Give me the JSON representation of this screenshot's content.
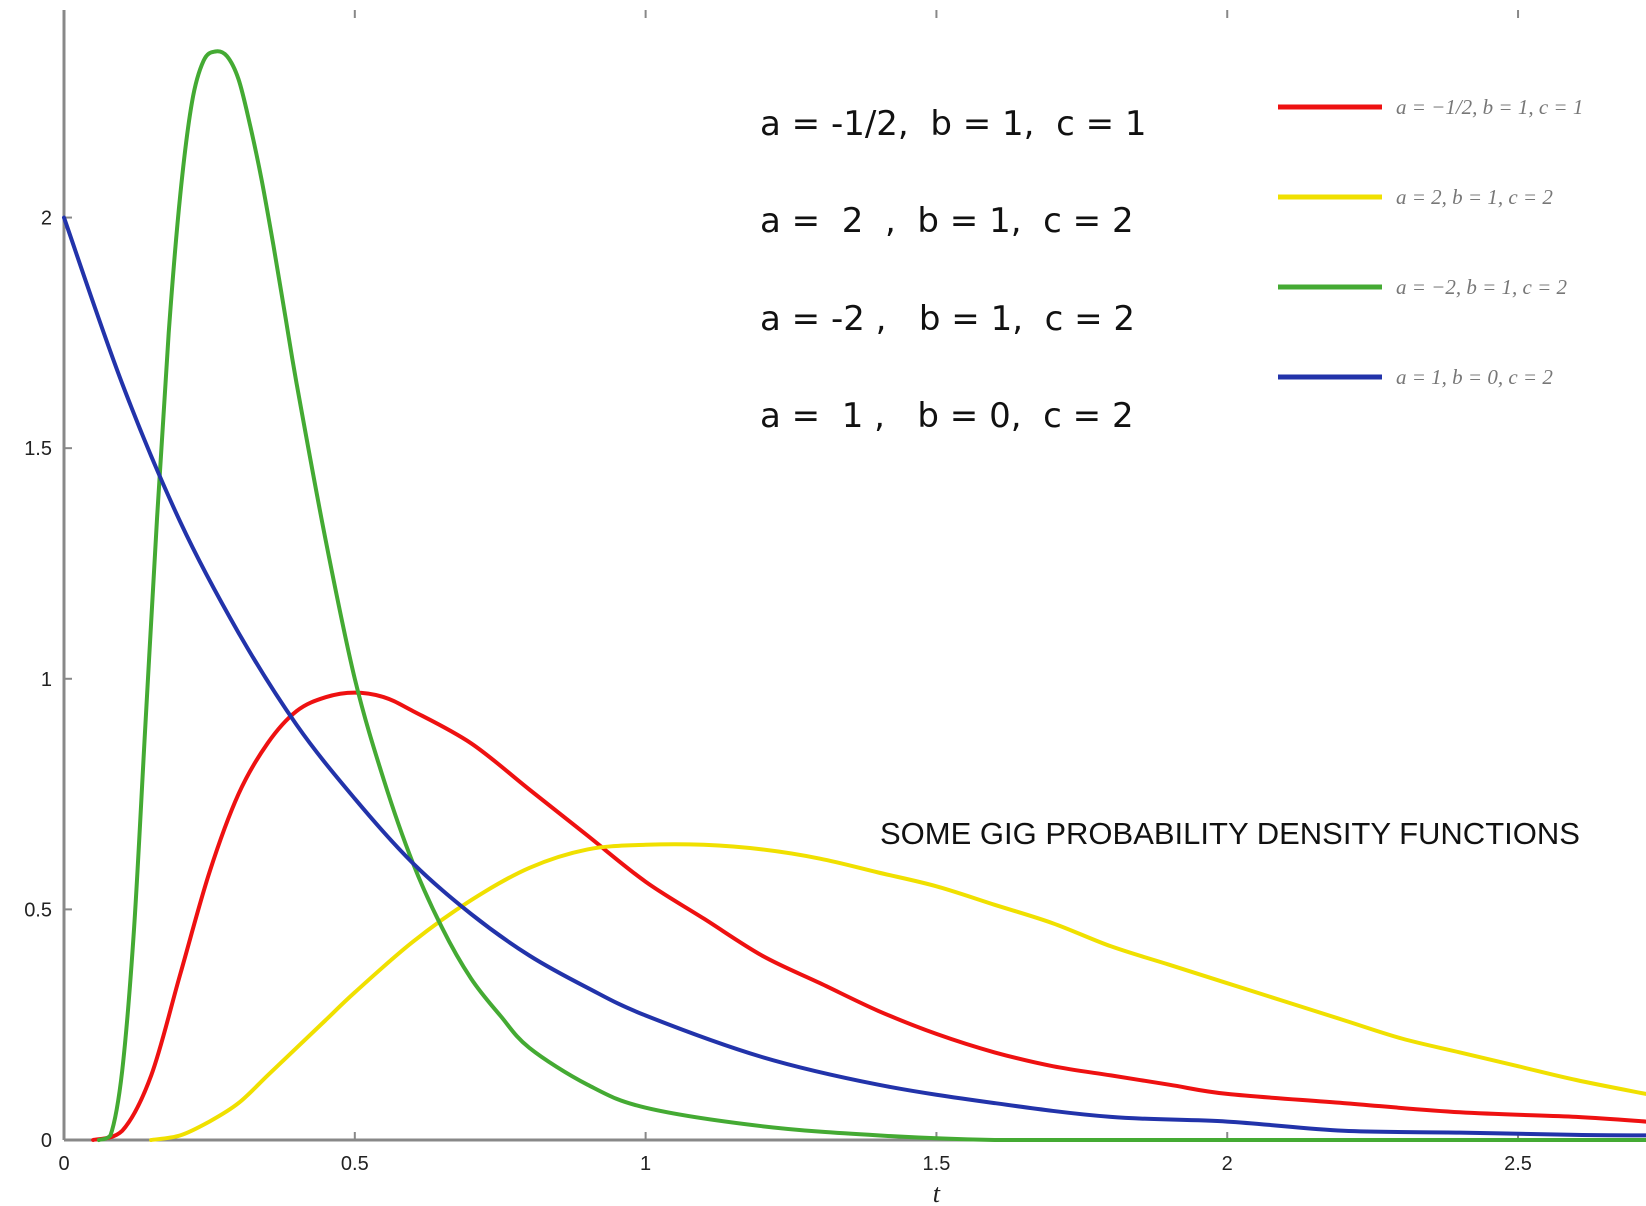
{
  "chart_data": {
    "type": "line",
    "title": "SOME GIG PROBABILITY DENSITY FUNCTIONS",
    "xlabel": "t",
    "ylabel": "",
    "xlim": [
      0,
      2.72
    ],
    "ylim": [
      0,
      2.45
    ],
    "xticks": [
      0,
      0.5,
      1,
      1.5,
      2,
      2.5
    ],
    "xtick_labels": [
      "0",
      "0.5",
      "1",
      "1.5",
      "2",
      "2.5"
    ],
    "yticks": [
      0,
      0.5,
      1,
      1.5,
      2
    ],
    "ytick_labels": [
      "0",
      "0.5",
      "1",
      "1.5",
      "2"
    ],
    "grid": false,
    "legend_position": "top-right",
    "annotations": [
      "a = -1/2,  b = 1,  c = 1",
      "a =  2  ,  b = 1,  c = 2",
      "a = -2 ,   b = 1,  c = 2",
      "a =  1 ,   b = 0,  c = 2"
    ],
    "series": [
      {
        "name": "a = −1/2, b = 1, c = 1",
        "color": "#ee1111",
        "x": [
          0.05,
          0.1,
          0.15,
          0.2,
          0.25,
          0.3,
          0.35,
          0.4,
          0.45,
          0.5,
          0.55,
          0.6,
          0.7,
          0.8,
          0.9,
          1.0,
          1.1,
          1.2,
          1.3,
          1.4,
          1.5,
          1.6,
          1.7,
          1.8,
          1.9,
          2.0,
          2.2,
          2.4,
          2.6,
          2.72
        ],
        "values": [
          0.0,
          0.02,
          0.14,
          0.36,
          0.58,
          0.75,
          0.86,
          0.93,
          0.96,
          0.97,
          0.96,
          0.93,
          0.86,
          0.76,
          0.66,
          0.56,
          0.48,
          0.4,
          0.34,
          0.28,
          0.23,
          0.19,
          0.16,
          0.14,
          0.12,
          0.1,
          0.08,
          0.06,
          0.05,
          0.04
        ]
      },
      {
        "name": "a = 2, b = 1, c = 2",
        "color": "#f0e000",
        "x": [
          0.15,
          0.2,
          0.25,
          0.3,
          0.35,
          0.4,
          0.45,
          0.5,
          0.6,
          0.7,
          0.8,
          0.9,
          1.0,
          1.1,
          1.2,
          1.3,
          1.4,
          1.5,
          1.6,
          1.7,
          1.8,
          1.9,
          2.0,
          2.1,
          2.2,
          2.3,
          2.4,
          2.5,
          2.6,
          2.72
        ],
        "values": [
          0.0,
          0.01,
          0.04,
          0.08,
          0.14,
          0.2,
          0.26,
          0.32,
          0.43,
          0.52,
          0.59,
          0.63,
          0.64,
          0.64,
          0.63,
          0.61,
          0.58,
          0.55,
          0.51,
          0.47,
          0.42,
          0.38,
          0.34,
          0.3,
          0.26,
          0.22,
          0.19,
          0.16,
          0.13,
          0.1
        ]
      },
      {
        "name": "a = −2, b = 1, c = 2",
        "color": "#44aa33",
        "x": [
          0.06,
          0.08,
          0.1,
          0.12,
          0.14,
          0.16,
          0.18,
          0.2,
          0.22,
          0.24,
          0.26,
          0.28,
          0.3,
          0.32,
          0.34,
          0.36,
          0.38,
          0.4,
          0.45,
          0.5,
          0.55,
          0.6,
          0.65,
          0.7,
          0.75,
          0.8,
          0.9,
          1.0,
          1.2,
          1.4,
          1.6,
          1.8,
          2.0,
          2.4,
          2.72
        ],
        "values": [
          0.0,
          0.01,
          0.15,
          0.45,
          0.9,
          1.35,
          1.75,
          2.05,
          2.25,
          2.34,
          2.36,
          2.35,
          2.3,
          2.2,
          2.08,
          1.94,
          1.79,
          1.64,
          1.3,
          1.0,
          0.78,
          0.6,
          0.46,
          0.35,
          0.27,
          0.2,
          0.12,
          0.07,
          0.03,
          0.01,
          0.0,
          0.0,
          0.0,
          0.0,
          0.0
        ]
      },
      {
        "name": "a = 1, b = 0, c = 2",
        "color": "#2233aa",
        "x": [
          0.0,
          0.1,
          0.2,
          0.3,
          0.4,
          0.5,
          0.6,
          0.7,
          0.8,
          0.9,
          1.0,
          1.2,
          1.4,
          1.6,
          1.8,
          2.0,
          2.2,
          2.4,
          2.6,
          2.72
        ],
        "values": [
          2.0,
          1.64,
          1.34,
          1.1,
          0.9,
          0.74,
          0.6,
          0.49,
          0.4,
          0.33,
          0.27,
          0.18,
          0.12,
          0.08,
          0.05,
          0.04,
          0.02,
          0.016,
          0.011,
          0.01
        ]
      }
    ]
  }
}
